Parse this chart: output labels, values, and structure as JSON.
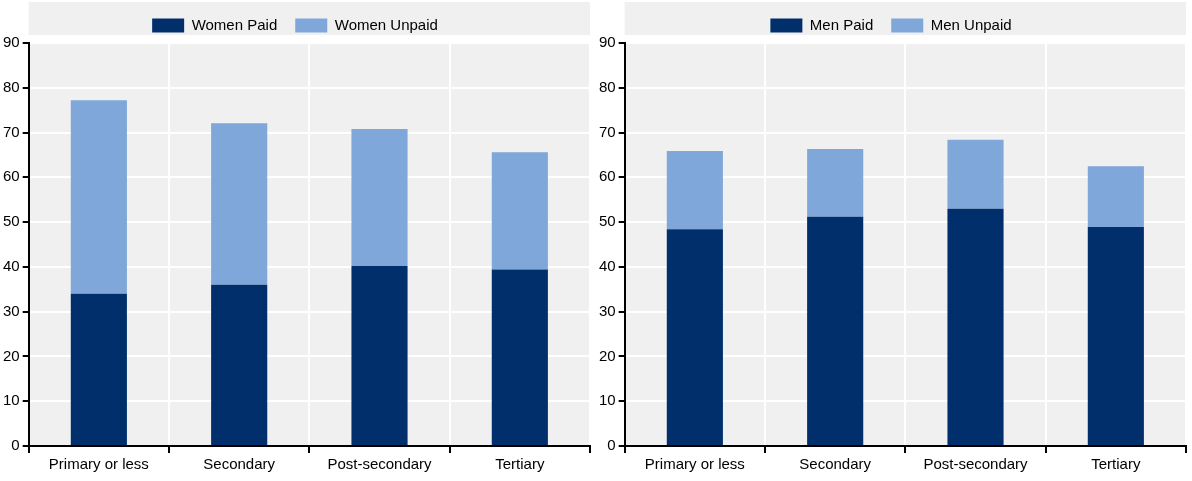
{
  "chart_data": [
    {
      "type": "bar",
      "stacked": true,
      "categories": [
        "Primary or less",
        "Secondary",
        "Post-secondary",
        "Tertiary"
      ],
      "series": [
        {
          "name": "Women Paid",
          "color": "#002f6c",
          "values": [
            34,
            36,
            40.2,
            39.4
          ]
        },
        {
          "name": "Women Unpaid",
          "color": "#7fa7d9",
          "values": [
            43.2,
            36.1,
            30.6,
            26.2
          ]
        }
      ],
      "ylim": [
        0,
        90
      ],
      "yticks": [
        0,
        10,
        20,
        30,
        40,
        50,
        60,
        70,
        80,
        90
      ],
      "grid": true,
      "legend": "top"
    },
    {
      "type": "bar",
      "stacked": true,
      "categories": [
        "Primary or less",
        "Secondary",
        "Post-secondary",
        "Tertiary"
      ],
      "series": [
        {
          "name": "Men Paid",
          "color": "#002f6c",
          "values": [
            48.4,
            51.2,
            53,
            48.9
          ]
        },
        {
          "name": "Men Unpaid",
          "color": "#7fa7d9",
          "values": [
            17.5,
            15.1,
            15.4,
            13.6
          ]
        }
      ],
      "ylim": [
        0,
        90
      ],
      "yticks": [
        0,
        10,
        20,
        30,
        40,
        50,
        60,
        70,
        80,
        90
      ],
      "grid": true,
      "legend": "top"
    }
  ]
}
